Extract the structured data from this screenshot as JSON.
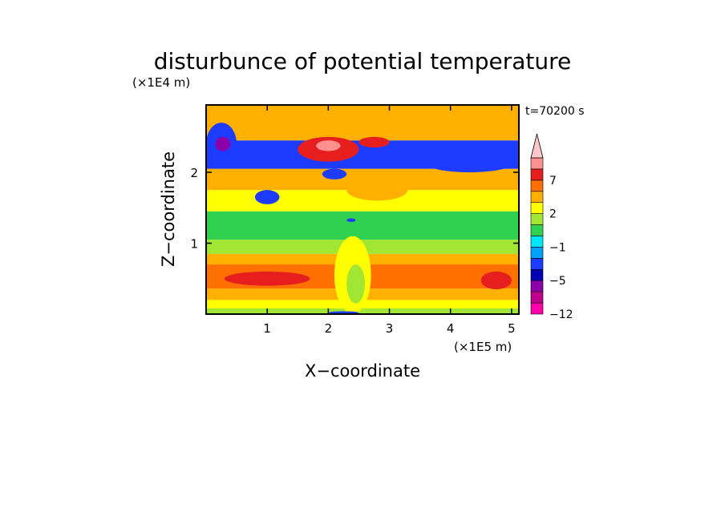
{
  "chart_data": {
    "type": "heatmap",
    "title": "disturbunce of potential temperature",
    "xlabel": "X−coordinate",
    "ylabel": "Z−coordinate",
    "x_unit": "(×1E5 m)",
    "y_unit": "(×1E4 m)",
    "time_label": "t=70200 s",
    "xlim": [
      0,
      5.12
    ],
    "ylim": [
      0,
      2.95
    ],
    "x_ticks": [
      "1",
      "2",
      "3",
      "4",
      "5"
    ],
    "x_tick_values": [
      1,
      2,
      3,
      4,
      5
    ],
    "y_ticks": [
      "1",
      "2"
    ],
    "y_tick_values": [
      1,
      2
    ],
    "colorbar_labels": [
      "7",
      "2",
      "−1",
      "−5",
      "−12"
    ],
    "colorbar_label_values": [
      7,
      2,
      -1,
      -5,
      -12
    ],
    "colorbar_levels": [
      -12,
      -9,
      -7,
      -5,
      -3,
      -2,
      -1,
      0,
      1,
      2,
      3,
      5,
      7,
      9
    ],
    "colorbar_colors": [
      "#ff00aa",
      "#c0008c",
      "#8c00aa",
      "#0000b4",
      "#1e3cff",
      "#00a0ff",
      "#00e6ff",
      "#30d050",
      "#a0e632",
      "#ffff00",
      "#ffb000",
      "#ff7000",
      "#e61e1e",
      "#ff9090",
      "#ffc8c8"
    ],
    "bands": [
      {
        "z": [
          0.0,
          0.08
        ],
        "value": 0
      },
      {
        "z": [
          0.08,
          0.2
        ],
        "value": 1
      },
      {
        "z": [
          0.2,
          0.36
        ],
        "value": 2
      },
      {
        "z": [
          0.36,
          0.7
        ],
        "value": 3
      },
      {
        "z": [
          0.7,
          0.85
        ],
        "value": 2
      },
      {
        "z": [
          0.85,
          1.05
        ],
        "value": 0
      },
      {
        "z": [
          1.05,
          1.45
        ],
        "value": -1
      },
      {
        "z": [
          1.45,
          1.75
        ],
        "value": 1
      },
      {
        "z": [
          1.75,
          2.05
        ],
        "value": 2
      },
      {
        "z": [
          2.05,
          2.45
        ],
        "value": -4
      },
      {
        "z": [
          2.45,
          2.95
        ],
        "value": 2
      }
    ],
    "features": [
      {
        "x": [
          1.5,
          2.5
        ],
        "z": [
          2.15,
          2.5
        ],
        "value": 5
      },
      {
        "x": [
          2.5,
          3.0
        ],
        "z": [
          2.35,
          2.5
        ],
        "value": 5
      },
      {
        "x": [
          1.8,
          2.2
        ],
        "z": [
          2.3,
          2.45
        ],
        "value": 8
      },
      {
        "x": [
          0.0,
          0.5
        ],
        "z": [
          2.1,
          2.7
        ],
        "value": -5
      },
      {
        "x": [
          0.15,
          0.4
        ],
        "z": [
          2.3,
          2.5
        ],
        "value": -8
      },
      {
        "x": [
          3.5,
          5.12
        ],
        "z": [
          2.0,
          2.35
        ],
        "value": -5
      },
      {
        "x": [
          1.9,
          2.3
        ],
        "z": [
          1.9,
          2.05
        ],
        "value": -5
      },
      {
        "x": [
          0.8,
          1.2
        ],
        "z": [
          1.55,
          1.75
        ],
        "value": -5
      },
      {
        "x": [
          2.3,
          3.3
        ],
        "z": [
          1.6,
          1.9
        ],
        "value": 2
      },
      {
        "x": [
          0.3,
          1.7
        ],
        "z": [
          0.4,
          0.6
        ],
        "value": 5
      },
      {
        "x": [
          4.5,
          5.0
        ],
        "z": [
          0.35,
          0.6
        ],
        "value": 5
      },
      {
        "x": [
          2.1,
          2.7
        ],
        "z": [
          0.0,
          1.1
        ],
        "value": 1
      },
      {
        "x": [
          2.3,
          2.6
        ],
        "z": [
          0.15,
          0.7
        ],
        "value": 0
      },
      {
        "x": [
          2.0,
          2.5
        ],
        "z": [
          0.0,
          0.04
        ],
        "value": -4
      },
      {
        "x": [
          2.3,
          2.45
        ],
        "z": [
          1.3,
          1.35
        ],
        "value": -5
      }
    ]
  }
}
